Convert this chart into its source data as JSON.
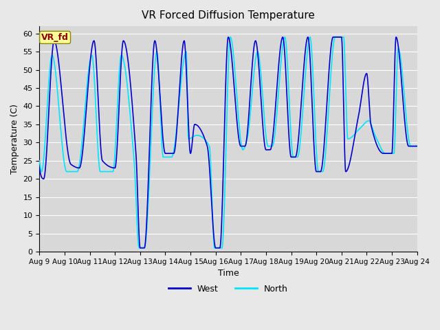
{
  "title": "VR Forced Diffusion Temperature",
  "xlabel": "Time",
  "ylabel": "Temperature (C)",
  "ylim": [
    0,
    62
  ],
  "xlim": [
    0,
    360
  ],
  "bg_color": "#e8e8e8",
  "plot_bg_color": "#d8d8d8",
  "west_color": "#0000cc",
  "north_color": "#00e5ff",
  "grid_color": "#ffffff",
  "label_tag": "VR_fd",
  "label_tag_bg": "#ffff99",
  "label_tag_fg": "#8b0000",
  "xtick_labels": [
    "Aug 9",
    "Aug 10",
    "Aug 11",
    "Aug 12",
    "Aug 13",
    "Aug 14",
    "Aug 15",
    "Aug 16",
    "Aug 17",
    "Aug 18",
    "Aug 19",
    "Aug 20",
    "Aug 21",
    "Aug 22",
    "Aug 23",
    "Aug 24"
  ],
  "xtick_positions": [
    0,
    24,
    48,
    72,
    96,
    120,
    144,
    168,
    192,
    216,
    240,
    264,
    288,
    312,
    336,
    360
  ],
  "ytick_labels": [
    "0",
    "5",
    "10",
    "15",
    "20",
    "25",
    "30",
    "35",
    "40",
    "45",
    "50",
    "55",
    "60"
  ],
  "ytick_values": [
    0,
    5,
    10,
    15,
    20,
    25,
    30,
    35,
    40,
    45,
    50,
    55,
    60
  ]
}
